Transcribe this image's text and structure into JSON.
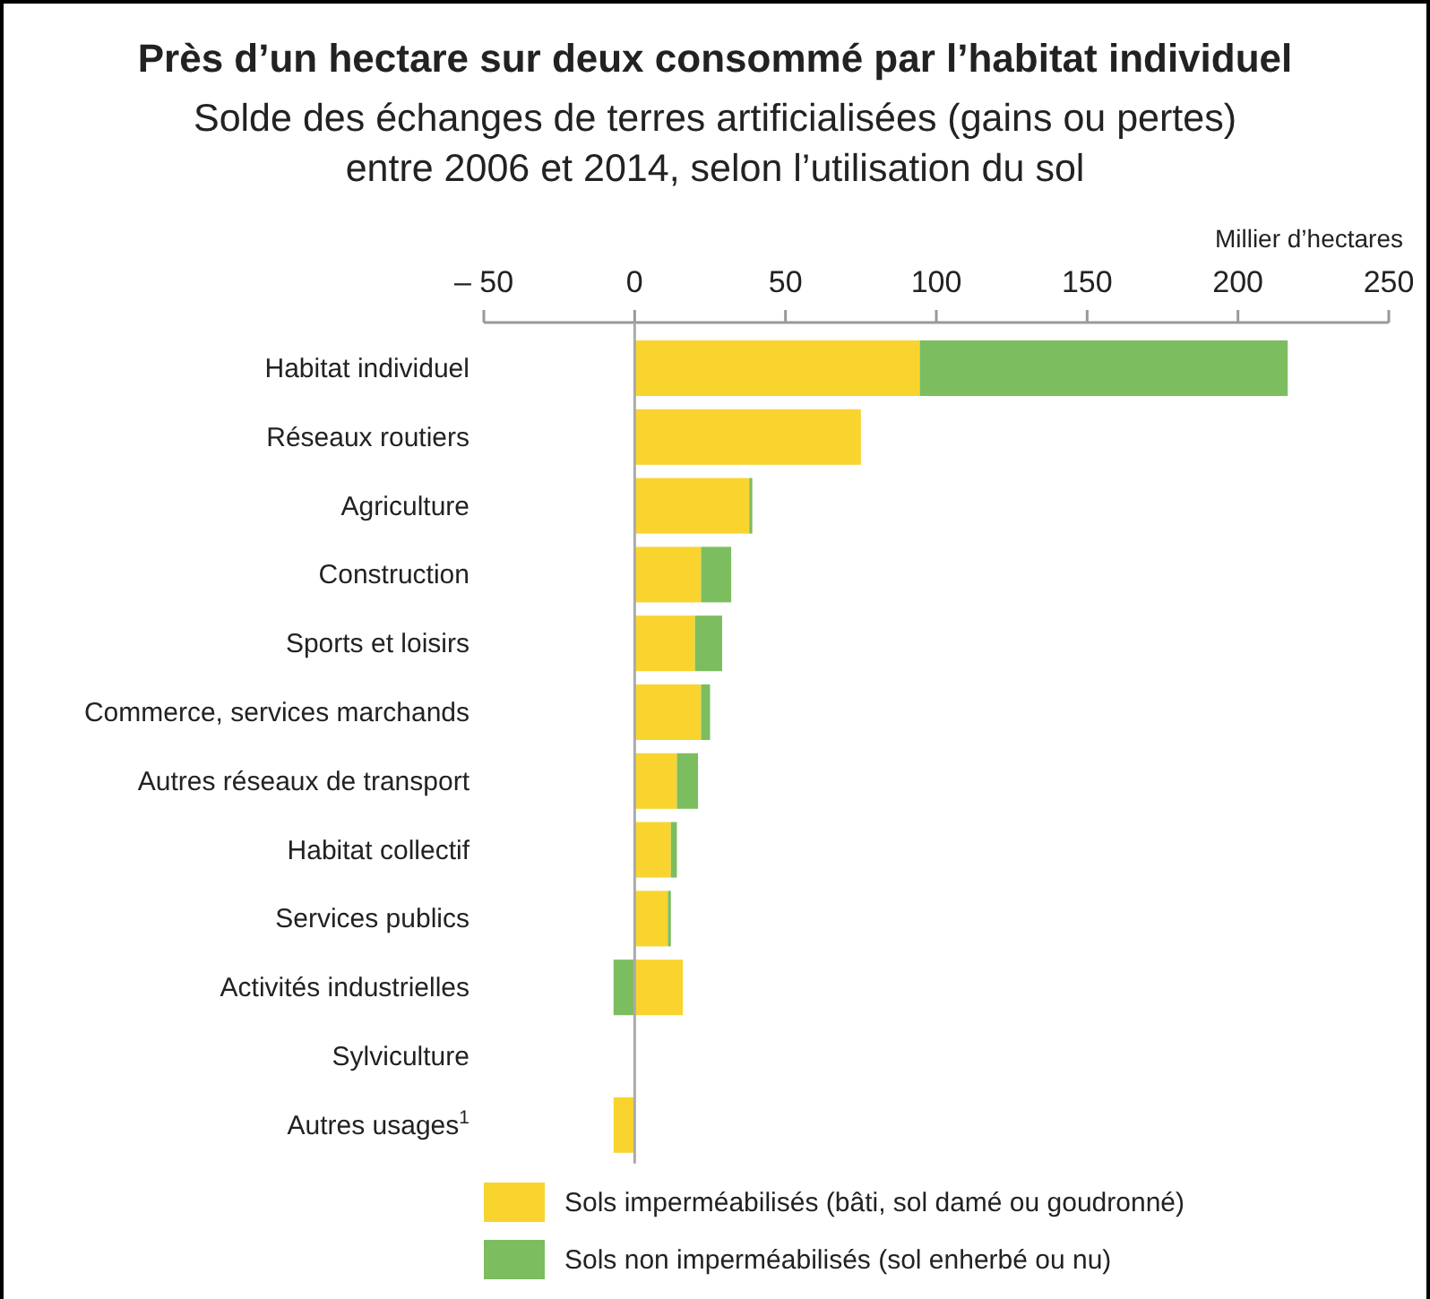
{
  "chart_data": {
    "type": "bar",
    "orientation": "horizontal",
    "stacked": true,
    "title": "Près d’un hectare sur deux consommé par l’habitat individuel",
    "subtitle": "Solde des échanges de terres artificialisées (gains ou pertes) entre 2006 et 2014, selon l’utilisation du sol",
    "xlabel": "Millier d’hectares",
    "categories": [
      "Habitat individuel",
      "Réseaux routiers",
      "Agriculture",
      "Construction",
      "Sports et loisirs",
      "Commerce, services marchands",
      "Autres réseaux de transport",
      "Habitat collectif",
      "Services publics",
      "Activités industrielles",
      "Sylviculture",
      "Autres usages$^{1}$"
    ],
    "series": [
      {
        "name": "Sols imperméabilisés (bâti, sol damé ou goudronné)",
        "color": "#f9d42f",
        "values": [
          94.5,
          75,
          38,
          22,
          20,
          22,
          14,
          12,
          11,
          16,
          0,
          -7
        ]
      },
      {
        "name": "Sols non imperméabilisés (sol enherbé ou nu)",
        "color": "#7cbd5f",
        "values": [
          122,
          0,
          1,
          10,
          9,
          3,
          7,
          2,
          1,
          -7,
          0,
          0
        ]
      }
    ],
    "xlim": [
      -50,
      250
    ],
    "xticks": [
      {
        "value": -50,
        "label": "– 50"
      },
      0,
      50,
      100,
      150,
      200,
      250
    ],
    "legend": "bottom"
  }
}
